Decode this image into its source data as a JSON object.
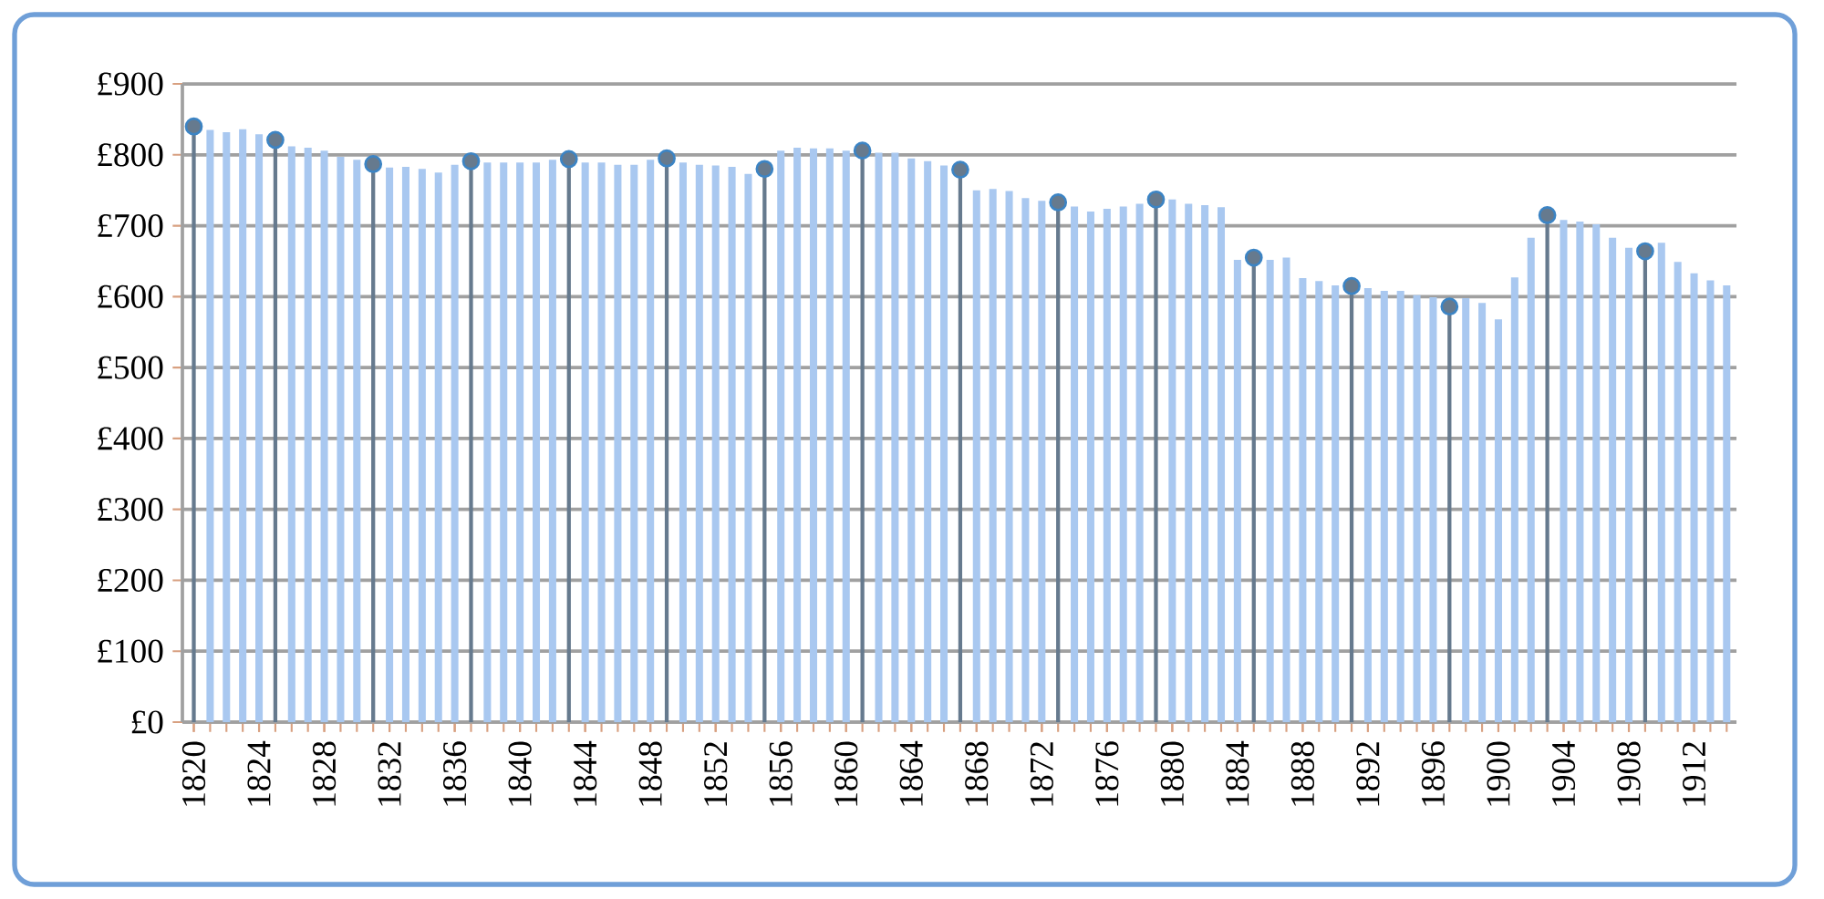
{
  "chart_data": {
    "type": "bar",
    "marker": "circle",
    "grid": "y",
    "xlim": [
      1819.3,
      1914.6
    ],
    "ylim": [
      0,
      900
    ],
    "xticks": [
      1820,
      1824,
      1828,
      1832,
      1836,
      1840,
      1844,
      1848,
      1852,
      1856,
      1860,
      1864,
      1868,
      1872,
      1876,
      1880,
      1884,
      1888,
      1892,
      1896,
      1900,
      1904,
      1908,
      1912
    ],
    "yticks": [
      {
        "value": 0,
        "label": "£0"
      },
      {
        "value": 100,
        "label": "£100"
      },
      {
        "value": 200,
        "label": "£200"
      },
      {
        "value": 300,
        "label": "£300"
      },
      {
        "value": 400,
        "label": "£400"
      },
      {
        "value": 500,
        "label": "£500"
      },
      {
        "value": 600,
        "label": "£600"
      },
      {
        "value": 700,
        "label": "£700"
      },
      {
        "value": 800,
        "label": "£800"
      },
      {
        "value": 900,
        "label": "£900"
      }
    ],
    "series": [
      {
        "color": "#a9c8f0",
        "x": [
          1821,
          1822,
          1823,
          1824,
          1825,
          1826,
          1827,
          1828,
          1829,
          1830,
          1831,
          1832,
          1833,
          1834,
          1835,
          1836,
          1837,
          1838,
          1839,
          1840,
          1841,
          1842,
          1843,
          1844,
          1845,
          1846,
          1847,
          1848,
          1849,
          1850,
          1851,
          1852,
          1853,
          1854,
          1855,
          1856,
          1857,
          1858,
          1859,
          1860,
          1861,
          1862,
          1863,
          1864,
          1865,
          1866,
          1867,
          1868,
          1869,
          1870,
          1871,
          1872,
          1873,
          1874,
          1875,
          1876,
          1877,
          1878,
          1879,
          1880,
          1881,
          1882,
          1883,
          1884,
          1885,
          1886,
          1887,
          1888,
          1889,
          1890,
          1891,
          1892,
          1893,
          1894,
          1895,
          1896,
          1897,
          1898,
          1899,
          1900,
          1901,
          1902,
          1903,
          1904,
          1905,
          1906,
          1907,
          1908,
          1909,
          1910,
          1911,
          1912,
          1913,
          1914
        ],
        "values": [
          835,
          832,
          836,
          829,
          null,
          812,
          810,
          806,
          797,
          793,
          null,
          782,
          783,
          780,
          775,
          786,
          null,
          789,
          789,
          789,
          789,
          793,
          null,
          789,
          789,
          786,
          786,
          793,
          null,
          789,
          786,
          785,
          783,
          773,
          null,
          806,
          810,
          809,
          809,
          806,
          null,
          803,
          803,
          795,
          791,
          785,
          null,
          750,
          752,
          749,
          739,
          735,
          null,
          727,
          720,
          724,
          727,
          731,
          null,
          737,
          731,
          729,
          726,
          652,
          null,
          652,
          655,
          626,
          622,
          616,
          null,
          612,
          608,
          608,
          602,
          599,
          null,
          598,
          591,
          568,
          627,
          683,
          null,
          708,
          706,
          702,
          683,
          669,
          null,
          676,
          649,
          633,
          623,
          616
        ]
      },
      {
        "type": "lollipop",
        "color": "#667a8e",
        "x": [
          1820,
          1825,
          1831,
          1837,
          1843,
          1849,
          1855,
          1861,
          1867,
          1873,
          1879,
          1885,
          1891,
          1897,
          1903,
          1909
        ],
        "values": [
          840,
          821,
          787,
          791,
          794,
          795,
          780,
          806,
          779,
          733,
          737,
          655,
          615,
          586,
          715,
          664
        ]
      }
    ]
  }
}
